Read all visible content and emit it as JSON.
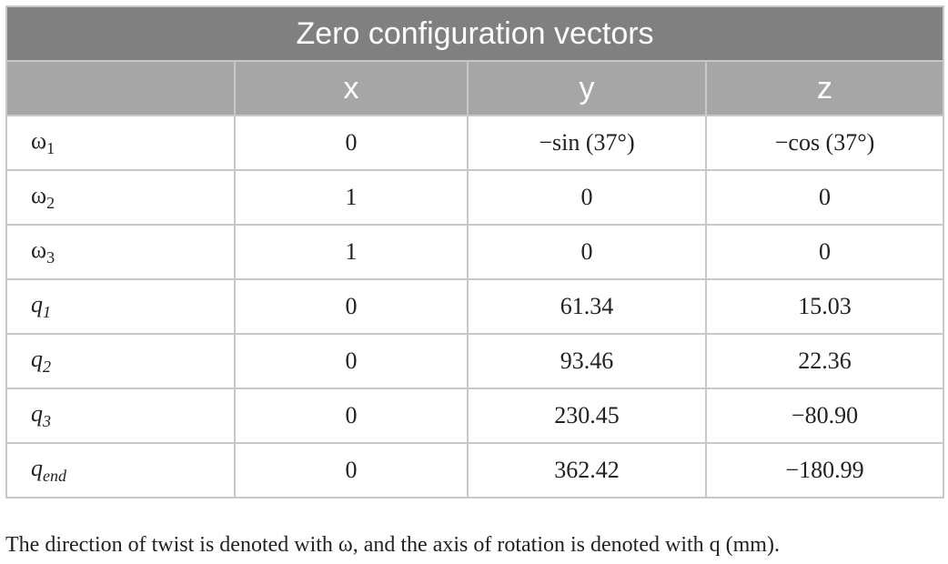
{
  "table": {
    "title": "Zero configuration vectors",
    "columns": [
      "x",
      "y",
      "z"
    ],
    "rows": [
      {
        "label": {
          "base": "ω",
          "sub": "1"
        },
        "cells": [
          "0",
          "−sin (37°)",
          "−cos (37°)"
        ]
      },
      {
        "label": {
          "base": "ω",
          "sub": "2"
        },
        "cells": [
          "1",
          "0",
          "0"
        ]
      },
      {
        "label": {
          "base": "ω",
          "sub": "3"
        },
        "cells": [
          "1",
          "0",
          "0"
        ]
      },
      {
        "label": {
          "base": "q",
          "sub": "1",
          "italic": true
        },
        "cells": [
          "0",
          "61.34",
          "15.03"
        ]
      },
      {
        "label": {
          "base": "q",
          "sub": "2",
          "italic": true
        },
        "cells": [
          "0",
          "93.46",
          "22.36"
        ]
      },
      {
        "label": {
          "base": "q",
          "sub": "3",
          "italic": true
        },
        "cells": [
          "0",
          "230.45",
          "−80.90"
        ]
      },
      {
        "label": {
          "base": "q",
          "sub": "end",
          "italic": true
        },
        "cells": [
          "0",
          "362.42",
          "−180.99"
        ]
      }
    ],
    "footnote": "The direction of twist is denoted with ω, and the axis of rotation is denoted with q (mm)."
  }
}
